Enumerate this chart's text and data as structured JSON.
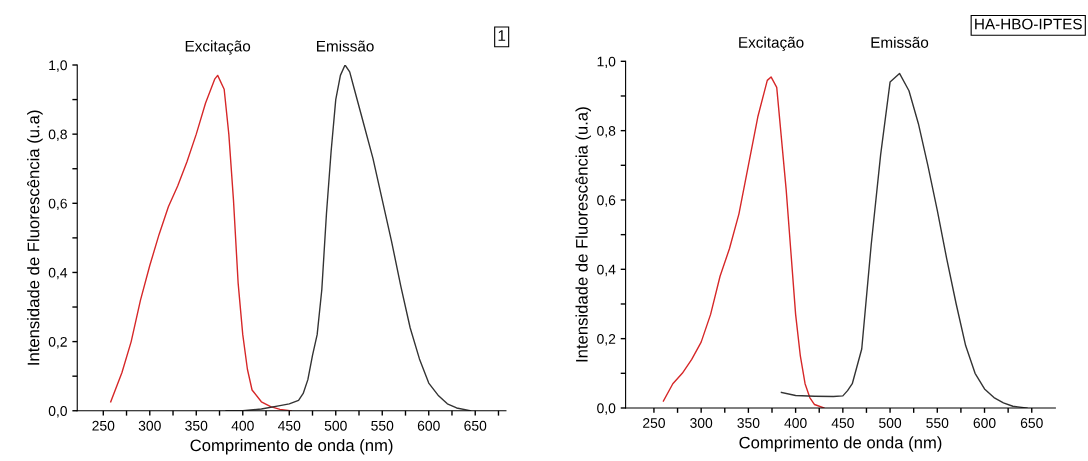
{
  "chart_data": [
    {
      "type": "line",
      "xlabel": "Comprimento de onda (nm)",
      "ylabel": "Intensidade de Fluorescência (u.a)",
      "annotations": [
        "1"
      ],
      "legend": false,
      "grid": false,
      "marker": "none",
      "line_style": "solid",
      "xlim": [
        222,
        683
      ],
      "ylim": [
        0,
        1
      ],
      "xticks": [
        250,
        {
          "value": 275,
          "label": null
        },
        300,
        {
          "value": 325,
          "label": null
        },
        350,
        {
          "value": 375,
          "label": null
        },
        400,
        {
          "value": 425,
          "label": null
        },
        450,
        {
          "value": 475,
          "label": null
        },
        500,
        {
          "value": 525,
          "label": null
        },
        550,
        {
          "value": 575,
          "label": null
        },
        600,
        {
          "value": 625,
          "label": null
        },
        650,
        {
          "value": 675,
          "label": null
        }
      ],
      "yticks": [
        {
          "value": 0,
          "label": "0,0"
        },
        {
          "value": 0.1,
          "label": null
        },
        {
          "value": 0.2,
          "label": "0,2"
        },
        {
          "value": 0.3,
          "label": null
        },
        {
          "value": 0.4,
          "label": "0,4"
        },
        {
          "value": 0.5,
          "label": null
        },
        {
          "value": 0.6,
          "label": "0,6"
        },
        {
          "value": 0.7,
          "label": null
        },
        {
          "value": 0.8,
          "label": "0,8"
        },
        {
          "value": 0.9,
          "label": null
        },
        {
          "value": 1.0,
          "label": "1,0"
        }
      ],
      "series": [
        {
          "name": "Excitação",
          "color": "#d62728",
          "x": [
            258,
            270,
            280,
            290,
            300,
            310,
            320,
            330,
            340,
            350,
            360,
            370,
            373,
            380,
            385,
            390,
            395,
            400,
            405,
            410,
            420,
            430,
            440,
            452
          ],
          "values": [
            0.026,
            0.11,
            0.2,
            0.32,
            0.42,
            0.51,
            0.59,
            0.65,
            0.72,
            0.8,
            0.89,
            0.96,
            0.97,
            0.93,
            0.8,
            0.61,
            0.37,
            0.22,
            0.12,
            0.06,
            0.026,
            0.012,
            0.004,
            0
          ]
        },
        {
          "name": "Emissão",
          "color": "#333333",
          "x": [
            382,
            400,
            420,
            440,
            450,
            460,
            465,
            470,
            475,
            480,
            485,
            490,
            495,
            500,
            505,
            510,
            515,
            520,
            530,
            540,
            550,
            560,
            570,
            580,
            590,
            600,
            610,
            620,
            630,
            645
          ],
          "values": [
            0,
            0,
            0.005,
            0.015,
            0.02,
            0.03,
            0.05,
            0.09,
            0.16,
            0.22,
            0.35,
            0.57,
            0.75,
            0.9,
            0.97,
            1.0,
            0.98,
            0.93,
            0.83,
            0.73,
            0.61,
            0.49,
            0.36,
            0.24,
            0.15,
            0.08,
            0.045,
            0.02,
            0.008,
            0
          ]
        }
      ]
    },
    {
      "type": "line",
      "xlabel": "Comprimento de onda (nm)",
      "ylabel": "Intensidade de Fluorescência (u.a)",
      "annotations": [
        "HA-HBO-IPTES"
      ],
      "legend": false,
      "grid": false,
      "marker": "none",
      "line_style": "solid",
      "xlim": [
        220,
        675
      ],
      "ylim": [
        0,
        1
      ],
      "xticks": [
        250,
        {
          "value": 275,
          "label": null
        },
        300,
        {
          "value": 325,
          "label": null
        },
        350,
        {
          "value": 375,
          "label": null
        },
        400,
        {
          "value": 425,
          "label": null
        },
        450,
        {
          "value": 475,
          "label": null
        },
        500,
        {
          "value": 525,
          "label": null
        },
        550,
        {
          "value": 575,
          "label": null
        },
        600,
        {
          "value": 625,
          "label": null
        },
        650
      ],
      "yticks": [
        {
          "value": 0,
          "label": "0,0"
        },
        {
          "value": 0.1,
          "label": null
        },
        {
          "value": 0.2,
          "label": "0,2"
        },
        {
          "value": 0.3,
          "label": null
        },
        {
          "value": 0.4,
          "label": "0,4"
        },
        {
          "value": 0.5,
          "label": null
        },
        {
          "value": 0.6,
          "label": "0,6"
        },
        {
          "value": 0.7,
          "label": null
        },
        {
          "value": 0.8,
          "label": "0,8"
        },
        {
          "value": 0.9,
          "label": null
        },
        {
          "value": 1.0,
          "label": "1,0"
        }
      ],
      "series": [
        {
          "name": "Excitação",
          "color": "#d62728",
          "x": [
            260,
            270,
            280,
            290,
            300,
            310,
            320,
            330,
            340,
            350,
            360,
            370,
            374,
            380,
            390,
            395,
            400,
            405,
            410,
            415,
            420,
            430
          ],
          "values": [
            0.02,
            0.07,
            0.1,
            0.14,
            0.19,
            0.27,
            0.38,
            0.46,
            0.56,
            0.7,
            0.84,
            0.945,
            0.955,
            0.925,
            0.63,
            0.45,
            0.27,
            0.15,
            0.07,
            0.03,
            0.01,
            0
          ]
        },
        {
          "name": "Emissão",
          "color": "#333333",
          "x": [
            385,
            400,
            420,
            440,
            450,
            455,
            460,
            470,
            480,
            490,
            500,
            510,
            520,
            530,
            540,
            550,
            560,
            570,
            580,
            590,
            600,
            610,
            620,
            630,
            645
          ],
          "values": [
            0.045,
            0.036,
            0.034,
            0.033,
            0.035,
            0.05,
            0.07,
            0.17,
            0.47,
            0.73,
            0.94,
            0.965,
            0.915,
            0.82,
            0.7,
            0.57,
            0.43,
            0.3,
            0.18,
            0.1,
            0.055,
            0.03,
            0.015,
            0.005,
            0
          ]
        }
      ]
    }
  ]
}
